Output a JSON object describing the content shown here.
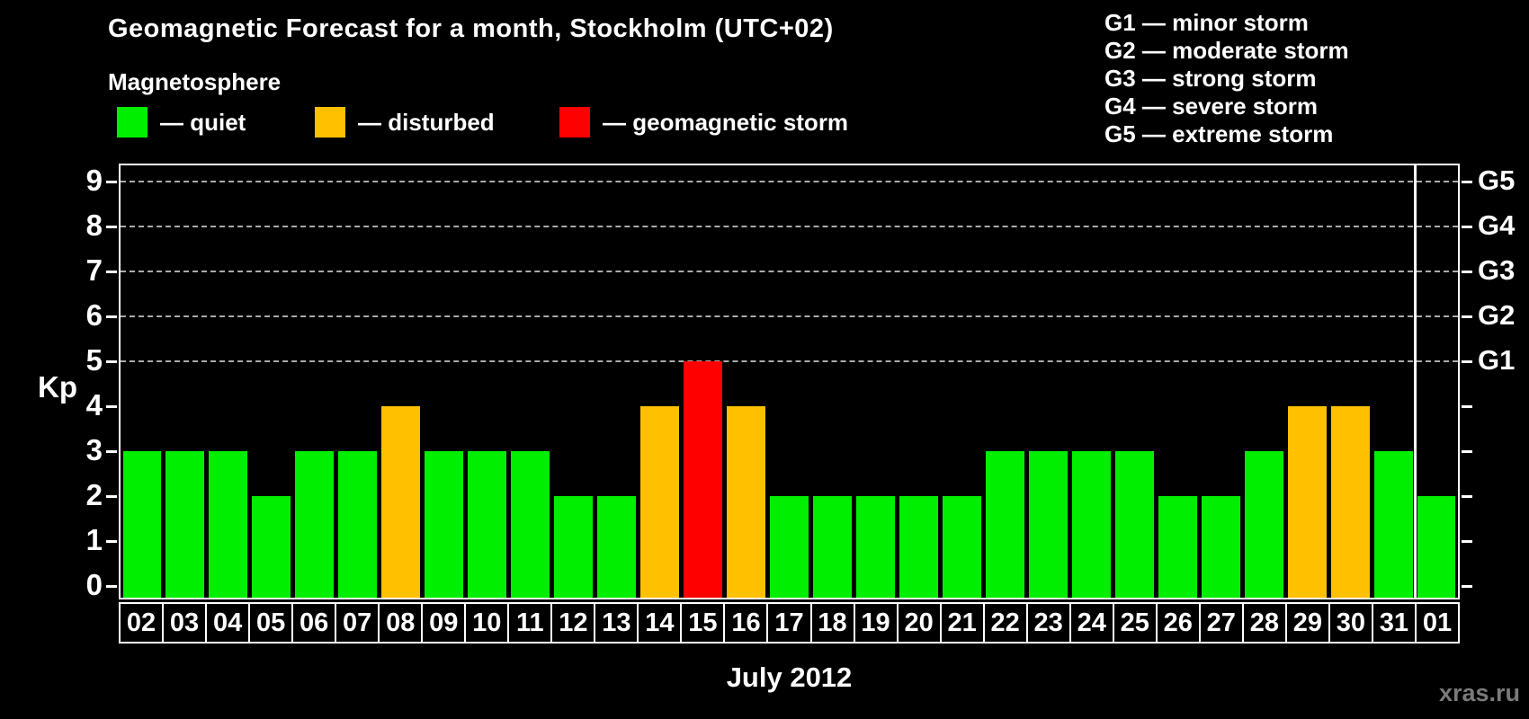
{
  "title": "Geomagnetic Forecast for a month, Stockholm (UTC+02)",
  "subtitle": "Magnetosphere",
  "legend": {
    "quiet": "— quiet",
    "disturbed": "— disturbed",
    "storm": "— geomagnetic storm"
  },
  "g_legend": [
    "G1 — minor storm",
    "G2 — moderate storm",
    "G3 — strong storm",
    "G4 — severe storm",
    "G5 — extreme storm"
  ],
  "colors": {
    "quiet": "#00ee00",
    "disturbed": "#ffc000",
    "storm": "#ff0000",
    "grid": "#aaaaaa",
    "frame": "#ffffff",
    "watermark": "#7a7a7a",
    "background": "#000000"
  },
  "axes": {
    "kp_label": "Kp",
    "y_ticks": [
      0,
      1,
      2,
      3,
      4,
      5,
      6,
      7,
      8,
      9
    ],
    "g_labels": [
      {
        "kp": 5,
        "label": "G1"
      },
      {
        "kp": 6,
        "label": "G2"
      },
      {
        "kp": 7,
        "label": "G3"
      },
      {
        "kp": 8,
        "label": "G4"
      },
      {
        "kp": 9,
        "label": "G5"
      }
    ],
    "month_label": "July 2012"
  },
  "watermark": "xras.ru",
  "chart_data": {
    "type": "bar",
    "title": "Geomagnetic Forecast for a month, Stockholm (UTC+02)",
    "xlabel": "July 2012",
    "ylabel": "Kp",
    "ylim": [
      0,
      9
    ],
    "grid": "dashed at Kp 5-9 only",
    "grid_levels": [
      5,
      6,
      7,
      8,
      9
    ],
    "legend_position": "top-left",
    "categories": [
      "02",
      "03",
      "04",
      "05",
      "06",
      "07",
      "08",
      "09",
      "10",
      "11",
      "12",
      "13",
      "14",
      "15",
      "16",
      "17",
      "18",
      "19",
      "20",
      "21",
      "22",
      "23",
      "24",
      "25",
      "26",
      "27",
      "28",
      "29",
      "30",
      "31",
      "01"
    ],
    "values": [
      3,
      3,
      3,
      2,
      3,
      3,
      4,
      3,
      3,
      3,
      2,
      2,
      4,
      5,
      4,
      2,
      2,
      2,
      2,
      2,
      3,
      3,
      3,
      3,
      2,
      2,
      3,
      4,
      4,
      3,
      2
    ],
    "status": [
      "quiet",
      "quiet",
      "quiet",
      "quiet",
      "quiet",
      "quiet",
      "disturbed",
      "quiet",
      "quiet",
      "quiet",
      "quiet",
      "quiet",
      "disturbed",
      "storm",
      "disturbed",
      "quiet",
      "quiet",
      "quiet",
      "quiet",
      "quiet",
      "quiet",
      "quiet",
      "quiet",
      "quiet",
      "quiet",
      "quiet",
      "quiet",
      "disturbed",
      "disturbed",
      "quiet",
      "quiet"
    ],
    "month_separator_after_index": 29
  }
}
